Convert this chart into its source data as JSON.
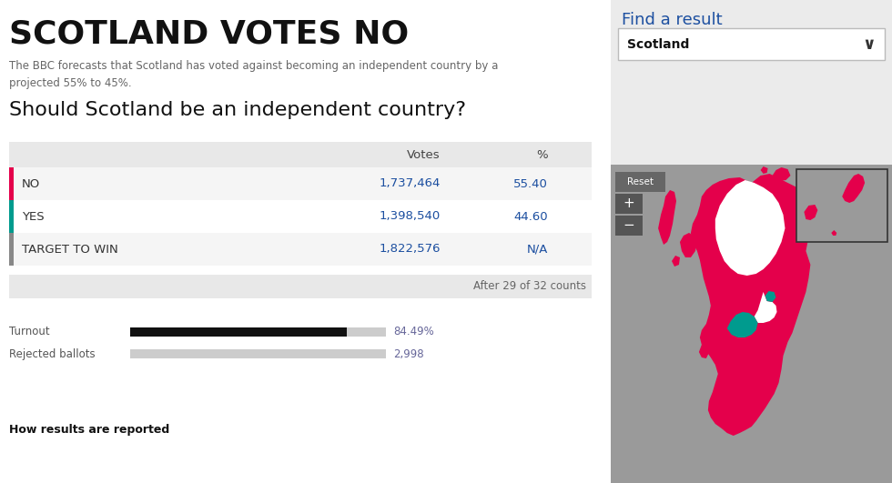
{
  "title": "SCOTLAND VOTES NO",
  "subtitle": "The BBC forecasts that Scotland has voted against becoming an independent country by a\nprojected 55% to 45%.",
  "question": "Should Scotland be an independent country?",
  "table_rows": [
    {
      "label": "NO",
      "votes": "1,737,464",
      "pct": "55.40",
      "color": "#e4004b"
    },
    {
      "label": "YES",
      "votes": "1,398,540",
      "pct": "44.60",
      "color": "#009b8e"
    },
    {
      "label": "TARGET TO WIN",
      "votes": "1,822,576",
      "pct": "N/A",
      "color": "#888888"
    }
  ],
  "after_counts": "After 29 of 32 counts",
  "turnout_label": "Turnout",
  "turnout_pct": "84.49%",
  "turnout_bar_pct": 0.8449,
  "rejected_label": "Rejected ballots",
  "rejected_value": "2,998",
  "how_label": "How results are reported",
  "right_panel_title": "Find a result",
  "right_panel_dropdown": "Scotland",
  "bg_color": "#ffffff",
  "table_header_bg": "#e8e8e8",
  "table_row_bg_odd": "#f5f5f5",
  "table_row_bg_even": "#ffffff",
  "right_panel_bg": "#ebebeb",
  "map_bg": "#9a9a9a",
  "pink": "#e4004b",
  "teal": "#009b8e",
  "white_area": "#f0f0f0"
}
